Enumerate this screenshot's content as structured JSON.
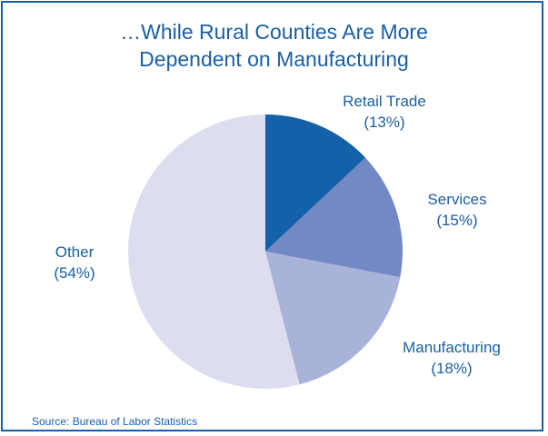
{
  "chart_data": {
    "type": "pie",
    "title_lines": [
      "…While Rural Counties Are More",
      "Dependent on Manufacturing"
    ],
    "slices": [
      {
        "label": "Retail Trade",
        "pct_text": "(13%)",
        "value": 13,
        "color": "#1461a9"
      },
      {
        "label": "Services",
        "pct_text": "(15%)",
        "value": 15,
        "color": "#7389c4"
      },
      {
        "label": "Manufacturing",
        "pct_text": "(18%)",
        "value": 18,
        "color": "#a9b3da"
      },
      {
        "label": "Other",
        "pct_text": "(54%)",
        "value": 54,
        "color": "#dcdef0"
      }
    ],
    "start": "12 o'clock, clockwise"
  },
  "source": "Source: Bureau of Labor Statistics"
}
